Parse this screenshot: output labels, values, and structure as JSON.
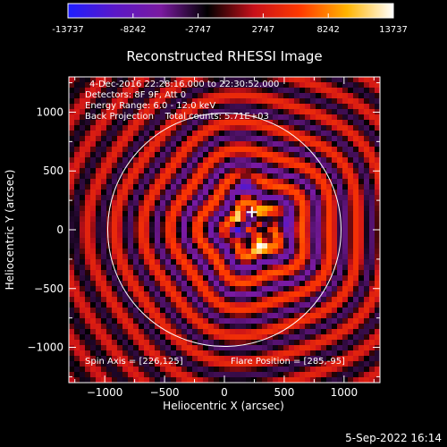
{
  "colorbar": {
    "ticks": [
      "-13737",
      "-8242",
      "-2747",
      "2747",
      "8242",
      "13737"
    ],
    "colors": [
      "#1e1eff",
      "#5a18c8",
      "#7a1aa0",
      "#000000",
      "#c8101a",
      "#ff3a00",
      "#ffb400",
      "#ffffff"
    ]
  },
  "chart_data": {
    "type": "heatmap",
    "title": "Reconstructed RHESSI Image",
    "xlabel": "Heliocentric X (arcsec)",
    "ylabel": "Heliocentric Y (arcsec)",
    "xlim": [
      -1300,
      1300
    ],
    "ylim": [
      -1300,
      1300
    ],
    "xticks": [
      -1000,
      -500,
      0,
      500,
      1000
    ],
    "yticks": [
      -1000,
      -500,
      0,
      500,
      1000
    ],
    "xtick_labels": [
      "−1000",
      "−500",
      "0",
      "500",
      "1000"
    ],
    "ytick_labels": [
      "−1000",
      "−500",
      "0",
      "500",
      "1000"
    ],
    "color_range": [
      -13737,
      13737
    ],
    "info_lines": [
      "4-Dec-2016 22:28:16.000 to 22:30:52.000",
      "Detectors: 8F 9F, Att 0",
      "Energy Range: 6.0 - 12.0 keV",
      "Back Projection    Total counts: 5.71E+03"
    ],
    "spin_axis": "Spin Axis = [226,125]",
    "flare_position": "Flare Position = [285,-95]",
    "solar_disk_radius": 975,
    "marker": [
      230,
      150
    ],
    "bright_peak": [
      285,
      -95
    ]
  },
  "footer": {
    "date": "5-Sep-2022 16:14"
  }
}
